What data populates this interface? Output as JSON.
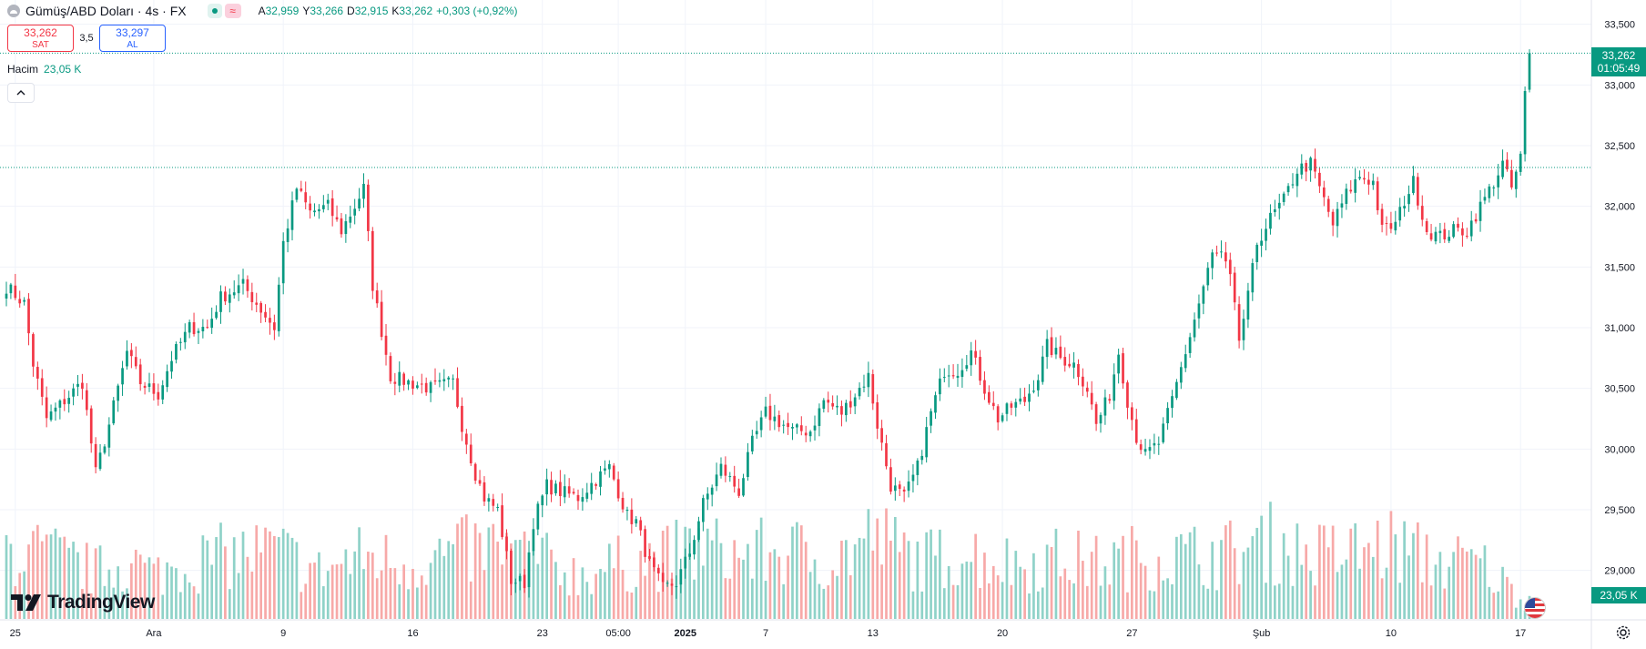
{
  "header": {
    "symbol_title": "Gümüş/ABD Doları · 4s · FX",
    "open_key": "A",
    "open": "32,959",
    "high_key": "Y",
    "high": "33,266",
    "low_key": "D",
    "low": "32,915",
    "close_key": "K",
    "close": "33,262",
    "change": "+0,303 (+0,92%)"
  },
  "trade": {
    "sell_price": "33,262",
    "sell_label": "SAT",
    "spread": "3,5",
    "buy_price": "33,297",
    "buy_label": "AL"
  },
  "volume_legend": {
    "label": "Hacim",
    "value": "23,05 K"
  },
  "price_tag": {
    "price": "33,262",
    "countdown": "01:05:49"
  },
  "volume_tag": "23,05 K",
  "brand": "TradingView",
  "colors": {
    "up": "#089981",
    "down": "#f23645",
    "up_volume": "#8fd2c8",
    "down_volume": "#f7a9a8",
    "grid": "#f0f3fa"
  },
  "icons": {
    "settings": "gear-icon",
    "collapse": "chevron-up-icon",
    "flag": "us-flag-icon",
    "logo": "tradingview-logo-icon"
  },
  "chart_data": {
    "type": "candlestick",
    "ylim": [
      28600,
      33700
    ],
    "y_ticks": [
      "33,500",
      "33,000",
      "32,500",
      "32,000",
      "31,500",
      "31,000",
      "30,500",
      "30,000",
      "29,500",
      "29,000"
    ],
    "y_tick_values": [
      33500,
      33000,
      32500,
      32000,
      31500,
      31000,
      30500,
      30000,
      29500,
      29000
    ],
    "x_ticks": [
      "25",
      "Ara",
      "9",
      "16",
      "23",
      "05:00",
      "2025",
      "7",
      "13",
      "20",
      "27",
      "Şub",
      "10",
      "17"
    ],
    "x_tick_bars": [
      2,
      33,
      62,
      91,
      120,
      137,
      152,
      170,
      194,
      223,
      252,
      281,
      310,
      339
    ],
    "x_tick_bold": [
      false,
      false,
      false,
      false,
      false,
      false,
      true,
      false,
      false,
      false,
      false,
      false,
      false,
      false
    ],
    "last_price": 33262,
    "horizontal_level": 32320,
    "anchors": [
      [
        0,
        31340
      ],
      [
        4,
        31200
      ],
      [
        6,
        30700
      ],
      [
        9,
        30250
      ],
      [
        13,
        30400
      ],
      [
        17,
        30550
      ],
      [
        20,
        29800
      ],
      [
        23,
        30200
      ],
      [
        27,
        30800
      ],
      [
        30,
        30550
      ],
      [
        34,
        30450
      ],
      [
        37,
        30750
      ],
      [
        41,
        31000
      ],
      [
        45,
        31000
      ],
      [
        48,
        31250
      ],
      [
        53,
        31350
      ],
      [
        56,
        31200
      ],
      [
        60,
        31000
      ],
      [
        62,
        31700
      ],
      [
        65,
        32150
      ],
      [
        68,
        31950
      ],
      [
        72,
        32000
      ],
      [
        75,
        31800
      ],
      [
        78,
        32000
      ],
      [
        80,
        32150
      ],
      [
        82,
        31350
      ],
      [
        86,
        30600
      ],
      [
        90,
        30550
      ],
      [
        95,
        30500
      ],
      [
        100,
        30550
      ],
      [
        102,
        30200
      ],
      [
        105,
        29800
      ],
      [
        107,
        29600
      ],
      [
        110,
        29500
      ],
      [
        113,
        28920
      ],
      [
        116,
        28900
      ],
      [
        118,
        29400
      ],
      [
        121,
        29700
      ],
      [
        124,
        29650
      ],
      [
        128,
        29600
      ],
      [
        132,
        29750
      ],
      [
        135,
        29850
      ],
      [
        137,
        29650
      ],
      [
        139,
        29450
      ],
      [
        141,
        29400
      ],
      [
        144,
        29050
      ],
      [
        147,
        28850
      ],
      [
        150,
        28900
      ],
      [
        153,
        29150
      ],
      [
        156,
        29550
      ],
      [
        160,
        29850
      ],
      [
        164,
        29650
      ],
      [
        167,
        30050
      ],
      [
        170,
        30300
      ],
      [
        174,
        30200
      ],
      [
        176,
        30150
      ],
      [
        180,
        30150
      ],
      [
        183,
        30400
      ],
      [
        187,
        30300
      ],
      [
        190,
        30450
      ],
      [
        193,
        30600
      ],
      [
        195,
        30200
      ],
      [
        198,
        29700
      ],
      [
        201,
        29600
      ],
      [
        204,
        29850
      ],
      [
        207,
        30300
      ],
      [
        210,
        30650
      ],
      [
        213,
        30650
      ],
      [
        216,
        30800
      ],
      [
        219,
        30500
      ],
      [
        222,
        30250
      ],
      [
        225,
        30350
      ],
      [
        228,
        30400
      ],
      [
        231,
        30600
      ],
      [
        233,
        30850
      ],
      [
        236,
        30750
      ],
      [
        239,
        30700
      ],
      [
        242,
        30500
      ],
      [
        244,
        30200
      ],
      [
        247,
        30450
      ],
      [
        249,
        30800
      ],
      [
        251,
        30400
      ],
      [
        253,
        30100
      ],
      [
        255,
        29950
      ],
      [
        258,
        30050
      ],
      [
        261,
        30400
      ],
      [
        264,
        30800
      ],
      [
        267,
        31200
      ],
      [
        270,
        31600
      ],
      [
        272,
        31600
      ],
      [
        274,
        31400
      ],
      [
        276,
        30900
      ],
      [
        278,
        31250
      ],
      [
        280,
        31700
      ],
      [
        283,
        31900
      ],
      [
        286,
        32050
      ],
      [
        289,
        32300
      ],
      [
        292,
        32350
      ],
      [
        294,
        32150
      ],
      [
        297,
        31850
      ],
      [
        300,
        32100
      ],
      [
        303,
        32250
      ],
      [
        306,
        32200
      ],
      [
        308,
        31800
      ],
      [
        311,
        31850
      ],
      [
        313,
        32050
      ],
      [
        315,
        32200
      ],
      [
        318,
        31800
      ],
      [
        321,
        31750
      ],
      [
        324,
        31800
      ],
      [
        327,
        31800
      ],
      [
        330,
        32000
      ],
      [
        333,
        32200
      ],
      [
        335,
        32350
      ],
      [
        337,
        32150
      ],
      [
        339,
        32400
      ],
      [
        340,
        32950
      ],
      [
        341,
        33262
      ]
    ],
    "volume_anchors": [
      [
        0,
        13000
      ],
      [
        10,
        12000
      ],
      [
        20,
        9000
      ],
      [
        28,
        11000
      ],
      [
        33,
        8500
      ],
      [
        45,
        11500
      ],
      [
        60,
        13000
      ],
      [
        70,
        9000
      ],
      [
        80,
        12000
      ],
      [
        90,
        10500
      ],
      [
        100,
        12500
      ],
      [
        110,
        13500
      ],
      [
        120,
        11000
      ],
      [
        128,
        8500
      ],
      [
        138,
        10500
      ],
      [
        147,
        11500
      ],
      [
        155,
        13500
      ],
      [
        165,
        12000
      ],
      [
        175,
        13000
      ],
      [
        185,
        11000
      ],
      [
        194,
        15500
      ],
      [
        205,
        11000
      ],
      [
        215,
        12500
      ],
      [
        225,
        10500
      ],
      [
        235,
        11500
      ],
      [
        245,
        10500
      ],
      [
        254,
        12000
      ],
      [
        265,
        12000
      ],
      [
        274,
        12500
      ],
      [
        283,
        14500
      ],
      [
        292,
        12000
      ],
      [
        300,
        12500
      ],
      [
        310,
        14000
      ],
      [
        320,
        11000
      ],
      [
        330,
        10500
      ],
      [
        340,
        3500
      ]
    ],
    "volume_ylim": [
      0,
      34000
    ]
  }
}
